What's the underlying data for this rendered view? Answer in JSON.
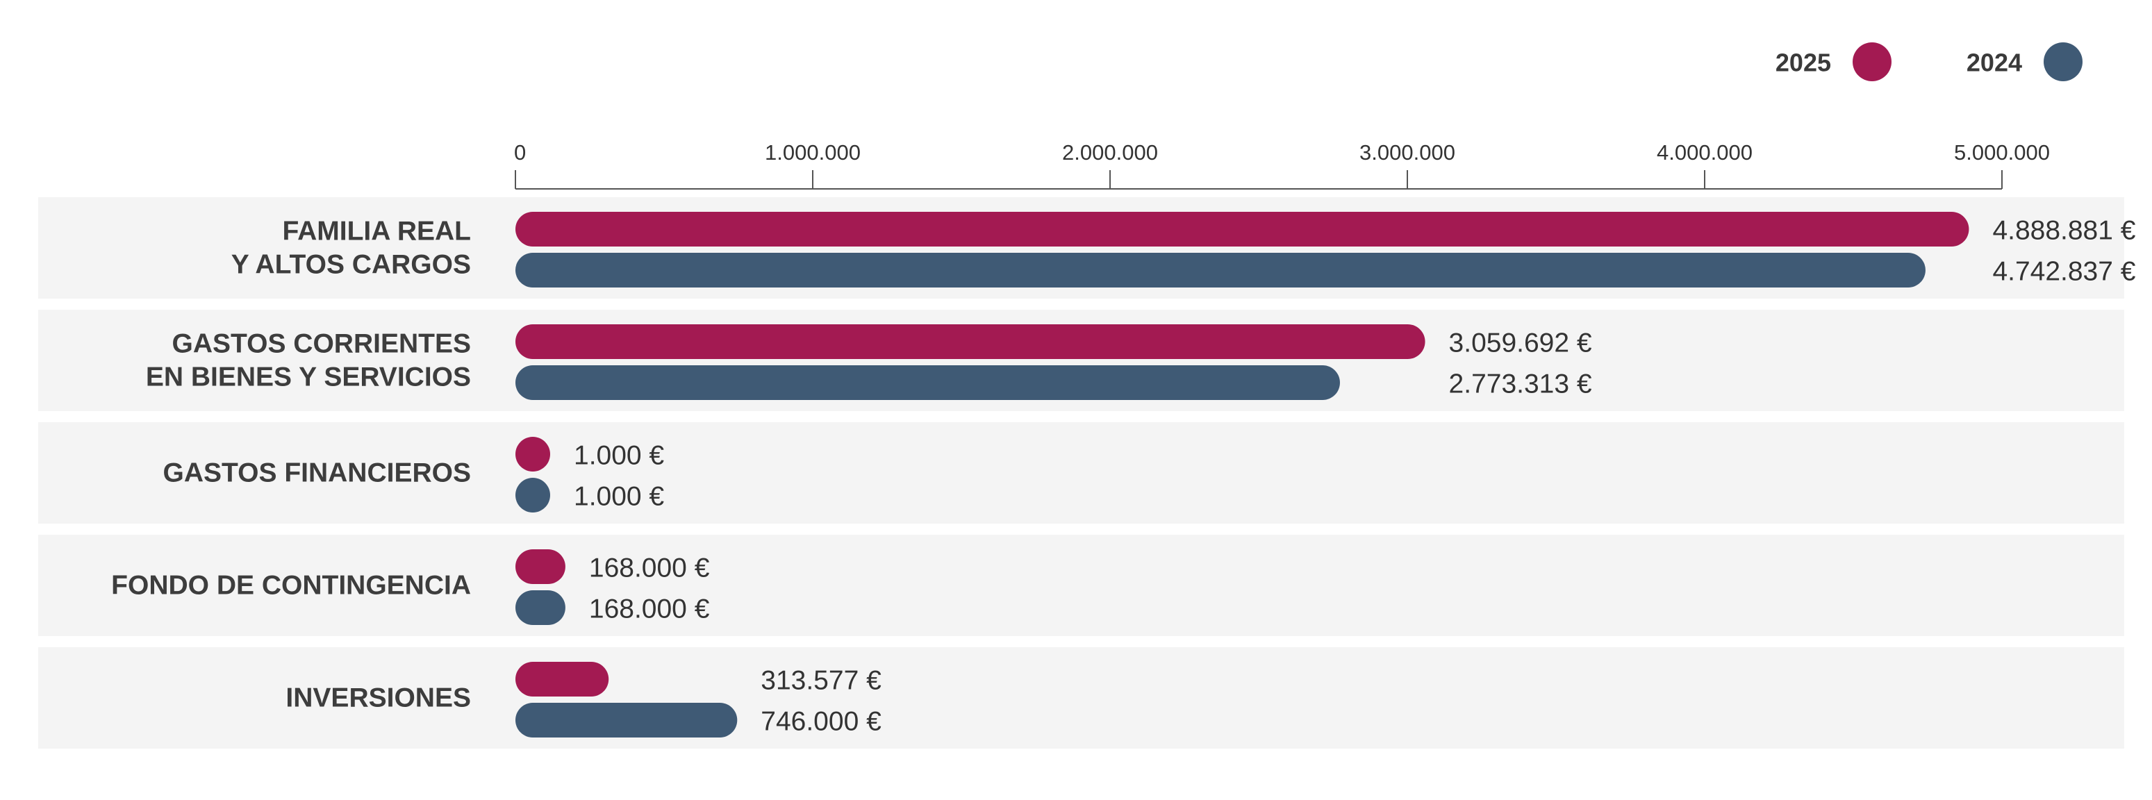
{
  "chart_data": {
    "type": "bar",
    "orientation": "horizontal",
    "categories": [
      [
        "FAMILIA REAL",
        "Y ALTOS CARGOS"
      ],
      [
        "GASTOS CORRIENTES",
        "EN BIENES Y SERVICIOS"
      ],
      [
        "GASTOS FINANCIEROS"
      ],
      [
        "FONDO DE CONTINGENCIA"
      ],
      [
        "INVERSIONES"
      ]
    ],
    "series": [
      {
        "name": "2025",
        "color": "#a31a52",
        "values": [
          4888881,
          3059692,
          1000,
          168000,
          313577
        ],
        "labels": [
          "4.888.881 €",
          "3.059.692 €",
          "1.000 €",
          "168.000 €",
          "313.577 €"
        ]
      },
      {
        "name": "2024",
        "color": "#3f5a75",
        "values": [
          4742837,
          2773313,
          1000,
          168000,
          746000
        ],
        "labels": [
          "4.742.837 €",
          "2.773.313 €",
          "1.000 €",
          "168.000 €",
          "746.000 €"
        ]
      }
    ],
    "xlim": [
      0,
      5000000
    ],
    "ticks": [
      0,
      1000000,
      2000000,
      3000000,
      4000000,
      5000000
    ],
    "tick_labels": [
      "0",
      "1.000.000",
      "2.000.000",
      "3.000.000",
      "4.000.000",
      "5.000.000"
    ],
    "axis_position": "top",
    "legend_position": "top-right",
    "grid": false,
    "row_background": "#f4f4f4",
    "axis_color": "#555555"
  }
}
